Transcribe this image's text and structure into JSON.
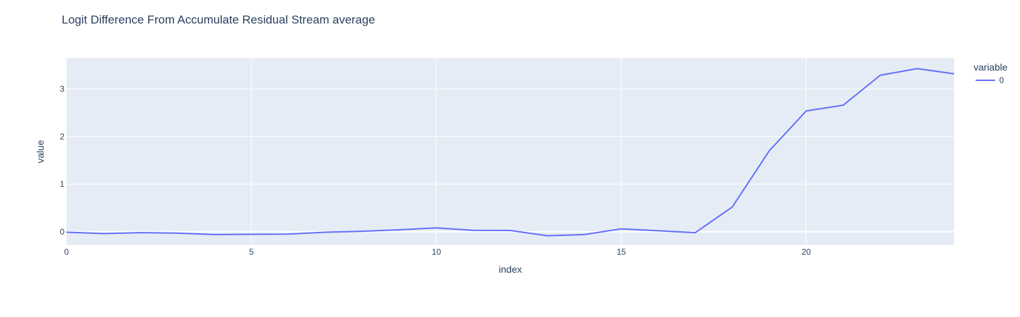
{
  "chart_data": {
    "type": "line",
    "title": "Logit Difference From Accumulate Residual Stream average",
    "xlabel": "index",
    "ylabel": "value",
    "xlim": [
      0,
      24
    ],
    "ylim": [
      -0.28,
      3.65
    ],
    "x_ticks": [
      0,
      5,
      10,
      15,
      20
    ],
    "y_ticks": [
      0,
      1,
      2,
      3
    ],
    "grid": true,
    "legend": {
      "title": "variable",
      "placement": "top-right"
    },
    "colors": {
      "plot_background": "#e5ecf6",
      "grid": "#ffffff",
      "text": "#2a3f5f"
    },
    "series": [
      {
        "name": "0",
        "color": "#636efa",
        "x": [
          0,
          1,
          2,
          3,
          4,
          5,
          6,
          7,
          8,
          9,
          10,
          11,
          12,
          13,
          14,
          15,
          16,
          17,
          18,
          19,
          20,
          21,
          22,
          23,
          24
        ],
        "values": [
          -0.01,
          -0.04,
          -0.02,
          -0.03,
          -0.06,
          -0.055,
          -0.05,
          -0.01,
          0.01,
          0.04,
          0.08,
          0.03,
          0.025,
          -0.085,
          -0.06,
          0.06,
          0.02,
          -0.02,
          0.52,
          1.7,
          2.54,
          2.66,
          3.29,
          3.43,
          3.32
        ]
      }
    ]
  }
}
